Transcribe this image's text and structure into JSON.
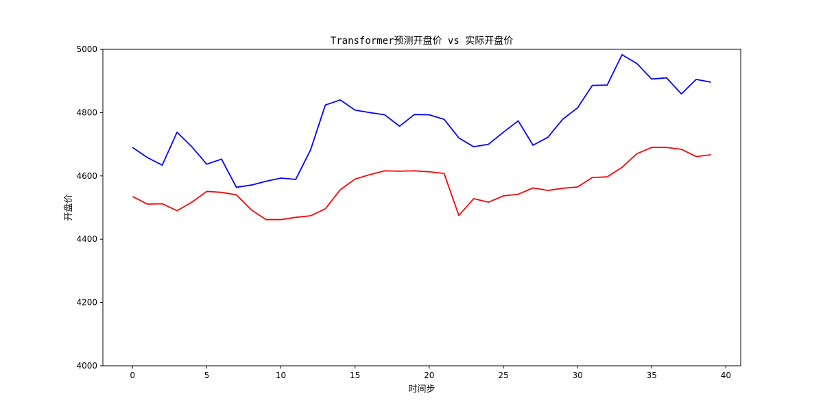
{
  "chart_data": {
    "type": "line",
    "title": "Transformer预测开盘价 vs 实际开盘价",
    "xlabel": "时间步",
    "ylabel": "开盘价",
    "xlim": [
      -2,
      41
    ],
    "ylim": [
      4000,
      5000
    ],
    "xticks": [
      0,
      5,
      10,
      15,
      20,
      25,
      30,
      35,
      40
    ],
    "yticks": [
      4000,
      4200,
      4400,
      4600,
      4800,
      5000
    ],
    "grid": false,
    "legend": "none",
    "x": [
      0,
      1,
      2,
      3,
      4,
      5,
      6,
      7,
      8,
      9,
      10,
      11,
      12,
      13,
      14,
      15,
      16,
      17,
      18,
      19,
      20,
      21,
      22,
      23,
      24,
      25,
      26,
      27,
      28,
      29,
      30,
      31,
      32,
      33,
      34,
      35,
      36,
      37,
      38,
      39
    ],
    "series": [
      {
        "color": "#0000ff",
        "values": [
          4690,
          4658,
          4634,
          4738,
          4692,
          4637,
          4653,
          4564,
          4571,
          4583,
          4593,
          4589,
          4682,
          4824,
          4840,
          4808,
          4800,
          4793,
          4757,
          4794,
          4793,
          4779,
          4720,
          4692,
          4700,
          4738,
          4774,
          4697,
          4722,
          4779,
          4815,
          4886,
          4887,
          4983,
          4955,
          4906,
          4910,
          4859,
          4905,
          4896
        ]
      },
      {
        "color": "#ff0000",
        "values": [
          4535,
          4511,
          4512,
          4490,
          4517,
          4551,
          4548,
          4540,
          4493,
          4462,
          4462,
          4469,
          4474,
          4496,
          4556,
          4590,
          4604,
          4616,
          4615,
          4616,
          4613,
          4608,
          4475,
          4528,
          4517,
          4537,
          4542,
          4562,
          4554,
          4561,
          4565,
          4595,
          4597,
          4627,
          4670,
          4690,
          4690,
          4684,
          4661,
          4667
        ]
      }
    ]
  }
}
